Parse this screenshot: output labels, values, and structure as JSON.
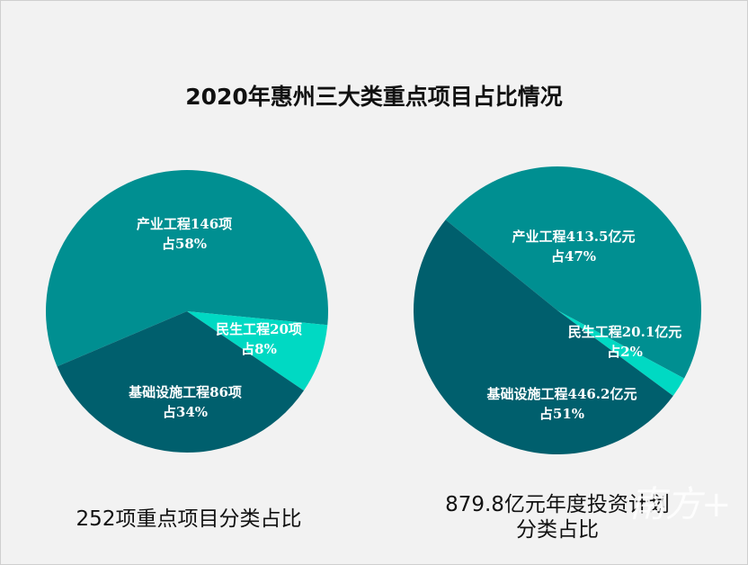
{
  "title": "2020年惠州三大类重点项目占比情况",
  "chart_data": [
    {
      "type": "pie",
      "caption": "252项重点项目分类占比",
      "slices": [
        {
          "name": "产业工程",
          "label": "产业工程146项",
          "pct_label": "占58%",
          "value": 146,
          "percent": 58,
          "color": "#008f91"
        },
        {
          "name": "民生工程",
          "label": "民生工程20项",
          "pct_label": "占8%",
          "value": 20,
          "percent": 8,
          "color": "#00d9c3"
        },
        {
          "name": "基础设施工程",
          "label": "基础设施工程86项",
          "pct_label": "占34%",
          "value": 86,
          "percent": 34,
          "color": "#005f6d"
        }
      ]
    },
    {
      "type": "pie",
      "caption": "879.8亿元年度投资计划分类占比",
      "caption_line1": "879.8亿元年度投资计划",
      "caption_line2": "分类占比",
      "slices": [
        {
          "name": "产业工程",
          "label": "产业工程413.5亿元",
          "pct_label": "占47%",
          "value": 413.5,
          "percent": 47,
          "color": "#008f91"
        },
        {
          "name": "民生工程",
          "label": "民生工程20.1亿元",
          "pct_label": "占2%",
          "value": 20.1,
          "percent": 2,
          "color": "#00d9c3"
        },
        {
          "name": "基础设施工程",
          "label": "基础设施工程446.2亿元",
          "pct_label": "占51%",
          "value": 446.2,
          "percent": 51,
          "color": "#005f6d"
        }
      ]
    }
  ],
  "watermark": "南方+"
}
